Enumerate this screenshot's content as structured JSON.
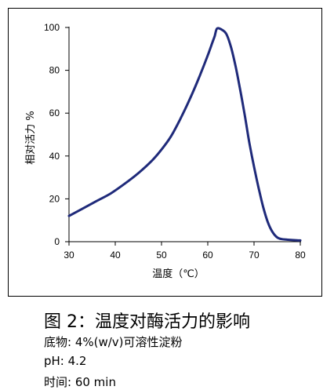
{
  "chart_data": {
    "type": "line",
    "xlabel": "温度（℃）",
    "ylabel": "相对活力 %",
    "xlim": [
      30,
      80
    ],
    "ylim": [
      0,
      100
    ],
    "x_ticks": [
      30,
      40,
      50,
      60,
      70,
      80
    ],
    "y_ticks": [
      0,
      20,
      40,
      60,
      80,
      100
    ],
    "grid": false,
    "line_color": "#1f2a7a",
    "series": [
      {
        "x": [
          30,
          33,
          36,
          39,
          42,
          45,
          48,
          50,
          52,
          54,
          56,
          58,
          60,
          61,
          61.5,
          62,
          63,
          64,
          65,
          66,
          67,
          68,
          69,
          70,
          71,
          72,
          73,
          74,
          75,
          76,
          77,
          78,
          79,
          80
        ],
        "values": [
          12,
          15.5,
          19,
          22.5,
          27,
          32,
          38,
          43,
          49,
          57,
          66,
          76,
          87,
          93,
          96,
          99.5,
          99,
          97,
          91,
          82,
          71,
          59,
          46,
          35,
          25,
          16,
          9,
          4.5,
          2,
          1.2,
          1,
          0.8,
          0.7,
          0.6
        ]
      }
    ]
  },
  "caption": "图 2：温度对酶活力的影响",
  "info": {
    "substrate": "底物: 4%(w/v)可溶性淀粉",
    "ph": "pH: 4.2",
    "time": "时间: 60 min"
  }
}
